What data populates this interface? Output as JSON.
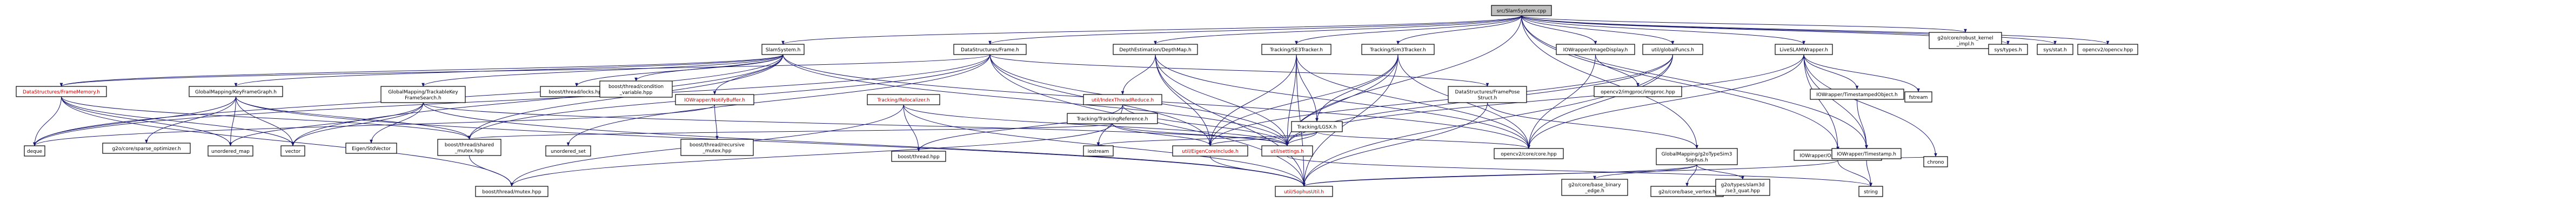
{
  "nodes": [
    {
      "id": "root",
      "text": "src/SlamSystem.cpp",
      "red": false,
      "highlight": true
    },
    {
      "id": "slam",
      "text": "SlamSystem.h",
      "red": false
    },
    {
      "id": "frame",
      "text": "DataStructures/Frame.h",
      "red": false
    },
    {
      "id": "depthmap",
      "text": "DepthEstimation/DepthMap.h",
      "red": false
    },
    {
      "id": "se3",
      "text": "Tracking/SE3Tracker.h",
      "red": false
    },
    {
      "id": "sim3",
      "text": "Tracking/Sim3Tracker.h",
      "red": false
    },
    {
      "id": "imgdisp",
      "text": "IOWrapper/ImageDisplay.h",
      "red": false
    },
    {
      "id": "globalf",
      "text": "util/globalFuncs.h",
      "red": false
    },
    {
      "id": "live",
      "text": "LiveSLAMWrapper.h",
      "red": false
    },
    {
      "id": "g2orobust",
      "text": "g2o/core/robust_kernel\n_impl.h",
      "red": false
    },
    {
      "id": "systypes",
      "text": "sys/types.h",
      "red": false
    },
    {
      "id": "sysstat",
      "text": "sys/stat.h",
      "red": false
    },
    {
      "id": "opencv2",
      "text": "opencv2/opencv.hpp",
      "red": false
    },
    {
      "id": "framemem",
      "text": "DataStructures/FrameMemory.h",
      "red": true
    },
    {
      "id": "kfgraph",
      "text": "GlobalMapping/KeyFrameGraph.h",
      "red": false
    },
    {
      "id": "trackkf",
      "text": "GlobalMapping/TrackableKey\nFrameSearch.h",
      "red": false
    },
    {
      "id": "btthread",
      "text": "boost/thread/locks.hpp",
      "red": false
    },
    {
      "id": "btcond",
      "text": "boost/thread/condition\n_variable.hpp",
      "red": false
    },
    {
      "id": "notify",
      "text": "IOWrapper/NotifyBuffer.h",
      "red": true
    },
    {
      "id": "relocal",
      "text": "Tracking/Relocalizer.h",
      "red": true
    },
    {
      "id": "tthread",
      "text": "util/IndexThreadReduce.h",
      "red": true
    },
    {
      "id": "trackref",
      "text": "Tracking/TrackingReference.h",
      "red": false
    },
    {
      "id": "lgsx",
      "text": "Tracking/LGSX.h",
      "red": false
    },
    {
      "id": "framepose",
      "text": "DataStructures/FramePose\nStruct.h",
      "red": false
    },
    {
      "id": "imgproc",
      "text": "opencv2/imgproc/imgproc.hpp",
      "red": false
    },
    {
      "id": "tsobj",
      "text": "IOWrapper/TimestampedObject.h",
      "red": false
    },
    {
      "id": "fstream",
      "text": "fstream",
      "red": false
    },
    {
      "id": "deque",
      "text": "deque",
      "red": false
    },
    {
      "id": "g2osparse",
      "text": "g2o/core/sparse_optimizer.h",
      "red": false
    },
    {
      "id": "umap",
      "text": "unordered_map",
      "red": false
    },
    {
      "id": "vector",
      "text": "vector",
      "red": false
    },
    {
      "id": "eigenstd",
      "text": "Eigen/StdVector",
      "red": false
    },
    {
      "id": "sharedmutex",
      "text": "boost/thread/shared\n_mutex.hpp",
      "red": false
    },
    {
      "id": "uset",
      "text": "unordered_set",
      "red": false
    },
    {
      "id": "recmutex",
      "text": "boost/thread/recursive\n_mutex.hpp",
      "red": false
    },
    {
      "id": "bthread",
      "text": "boost/thread.hpp",
      "red": false
    },
    {
      "id": "iostream",
      "text": "iostream",
      "red": false
    },
    {
      "id": "eigencore",
      "text": "util/EigenCoreInclude.h",
      "red": true
    },
    {
      "id": "settings",
      "text": "util/settings.h",
      "red": true
    },
    {
      "id": "cvcore",
      "text": "opencv2/core/core.hpp",
      "red": false
    },
    {
      "id": "g2osophus",
      "text": "GlobalMapping/g2oTypeSim3\nSophus.h",
      "red": false
    },
    {
      "id": "outwrap",
      "text": "IOWrapper/Output3DWrapper.h",
      "red": false
    },
    {
      "id": "timestamp",
      "text": "IOWrapper/Timestamp.h",
      "red": false
    },
    {
      "id": "chrono",
      "text": "chrono",
      "red": false
    },
    {
      "id": "btmutex",
      "text": "boost/thread/mutex.hpp",
      "red": false
    },
    {
      "id": "sophus",
      "text": "util/SophusUtil.h",
      "red": true
    },
    {
      "id": "g2obinary",
      "text": "g2o/core/base_binary\n_edge.h",
      "red": false
    },
    {
      "id": "g2overtex",
      "text": "g2o/core/base_vertex.h",
      "red": false
    },
    {
      "id": "g2oslam",
      "text": "g2o/types/slam3d\n/se3_quat.hpp",
      "red": false
    },
    {
      "id": "string",
      "text": "string",
      "red": false
    }
  ]
}
